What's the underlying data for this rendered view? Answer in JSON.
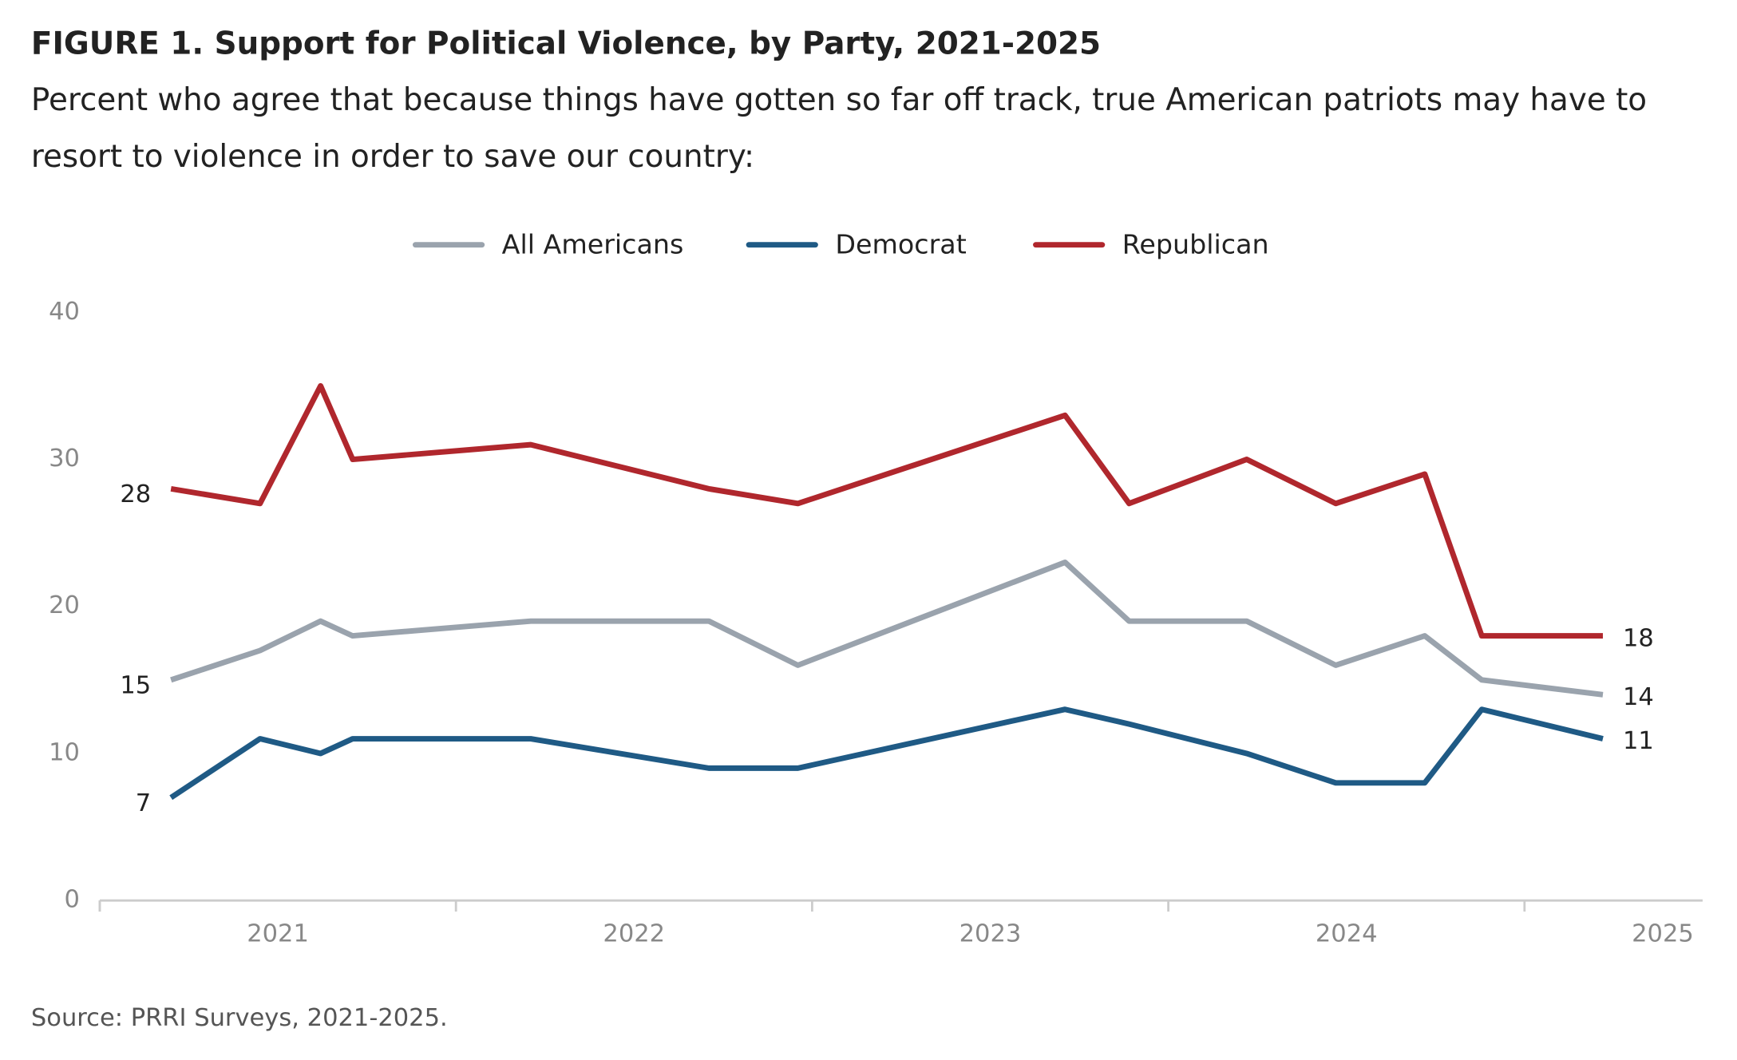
{
  "chart_data": {
    "type": "line",
    "title": "FIGURE 1.  Support for Political Violence, by Party, 2021-2025",
    "subtitle": [
      "Percent who agree that because things have gotten so far off track, true American patriots may have to",
      "resort to violence in order to save our country:"
    ],
    "source": "Source: PRRI Surveys, 2021-2025.",
    "x": [
      2021.2,
      2021.45,
      2021.62,
      2021.71,
      2022.21,
      2022.71,
      2022.96,
      2023.71,
      2023.89,
      2024.22,
      2024.47,
      2024.72,
      2024.88,
      2025.22
    ],
    "xlim": [
      2021,
      2025.5
    ],
    "xticks": [
      2021,
      2022,
      2023,
      2024,
      2025
    ],
    "ylim": [
      0,
      40
    ],
    "yticks": [
      0,
      10,
      20,
      30,
      40
    ],
    "grid": false,
    "legend": "top",
    "series": [
      {
        "name": "All Americans",
        "color": "#9aa3ad",
        "values": [
          15,
          17,
          19,
          18,
          19,
          19,
          16,
          23,
          19,
          19,
          16,
          18,
          15,
          14
        ]
      },
      {
        "name": "Democrat",
        "color": "#1f5a85",
        "values": [
          7,
          11,
          10,
          11,
          11,
          9,
          9,
          13,
          12,
          10,
          8,
          8,
          13,
          11
        ]
      },
      {
        "name": "Republican",
        "color": "#b0272d",
        "values": [
          28,
          27,
          35,
          30,
          31,
          28,
          27,
          33,
          27,
          30,
          27,
          29,
          18,
          18
        ]
      }
    ]
  }
}
